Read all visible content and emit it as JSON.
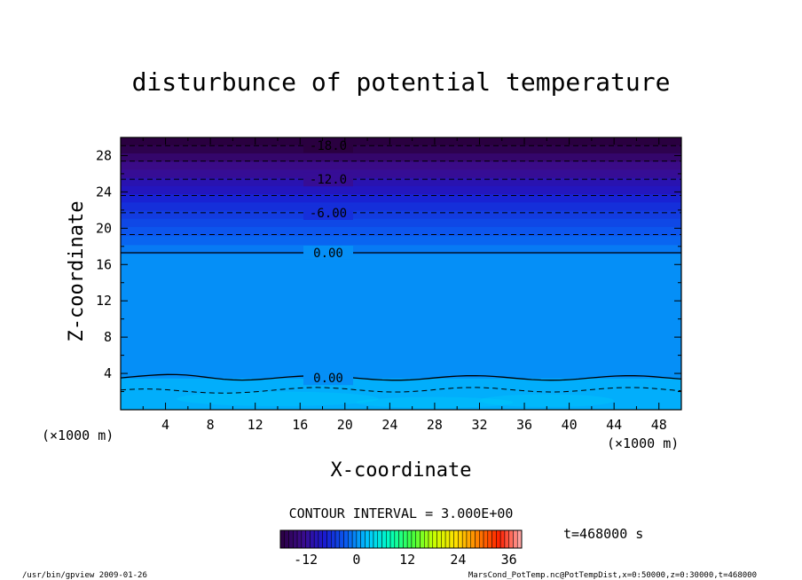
{
  "chart_data": {
    "type": "contour",
    "title": "disturbunce of potential temperature",
    "xlabel": "X-coordinate",
    "ylabel": "Z-coordinate",
    "x_unit": "(×1000 m)",
    "z_unit": "(×1000 m)",
    "xlim": [
      0,
      50
    ],
    "zlim": [
      0,
      30
    ],
    "x_ticks": [
      4,
      8,
      12,
      16,
      20,
      24,
      28,
      32,
      36,
      40,
      44,
      48
    ],
    "z_ticks": [
      4,
      8,
      12,
      16,
      20,
      24,
      28
    ],
    "contour_interval_label": "CONTOUR INTERVAL = 3.000E+00",
    "time_label": "t=468000 s",
    "bands": [
      {
        "z0": 0.0,
        "z1": 3.5,
        "value": 1.5
      },
      {
        "z0": 3.5,
        "z1": 17.2,
        "value": 0
      },
      {
        "z0": 17.2,
        "z1": 18.2,
        "value": -1
      },
      {
        "z0": 18.2,
        "z1": 19.2,
        "value": -2
      },
      {
        "z0": 19.2,
        "z1": 20.2,
        "value": -3
      },
      {
        "z0": 20.2,
        "z1": 21.1,
        "value": -4
      },
      {
        "z0": 21.1,
        "z1": 22.0,
        "value": -5
      },
      {
        "z0": 22.0,
        "z1": 22.9,
        "value": -6
      },
      {
        "z0": 22.9,
        "z1": 23.8,
        "value": -7
      },
      {
        "z0": 23.8,
        "z1": 24.7,
        "value": -9
      },
      {
        "z0": 24.7,
        "z1": 25.6,
        "value": -10
      },
      {
        "z0": 25.6,
        "z1": 26.5,
        "value": -12
      },
      {
        "z0": 26.5,
        "z1": 27.4,
        "value": -13
      },
      {
        "z0": 27.4,
        "z1": 28.3,
        "value": -15
      },
      {
        "z0": 28.3,
        "z1": 29.2,
        "value": -17
      },
      {
        "z0": 29.2,
        "z1": 30.0,
        "value": -18
      }
    ],
    "contours": [
      {
        "value": -18,
        "style": "dashed",
        "z": 29.1,
        "label": "-18.0"
      },
      {
        "value": -15,
        "style": "dashed",
        "z": 27.4,
        "label": ""
      },
      {
        "value": -12,
        "style": "dashed",
        "z": 25.4,
        "label": "-12.0"
      },
      {
        "value": -9,
        "style": "dashed",
        "z": 23.6,
        "label": ""
      },
      {
        "value": -6,
        "style": "dashed",
        "z": 21.7,
        "label": "-6.00"
      },
      {
        "value": -3,
        "style": "dashed",
        "z": 19.3,
        "label": ""
      },
      {
        "value": 0,
        "style": "solid",
        "z": 17.3,
        "label": "0.00"
      },
      {
        "value": 0,
        "style": "solid",
        "z": 3.5,
        "label": "0.00"
      },
      {
        "value": 3,
        "style": "dashed",
        "z": 2.2,
        "label": ""
      }
    ],
    "colorbar": {
      "min": -18,
      "max": 39,
      "ticks": [
        -12,
        0,
        12,
        24,
        36
      ],
      "stops": [
        "#2a0040",
        "#3b0b8a",
        "#1a1ad0",
        "#0a5cf0",
        "#00c8ff",
        "#00ffc0",
        "#40ff40",
        "#c8ff00",
        "#ffe000",
        "#ff8000",
        "#ff2000",
        "#ffb0b0"
      ]
    }
  },
  "footer": {
    "left": "/usr/bin/gpview   2009-01-26",
    "right": "MarsCond_PotTemp.nc@PotTempDist,x=0:50000,z=0:30000,t=468000"
  }
}
